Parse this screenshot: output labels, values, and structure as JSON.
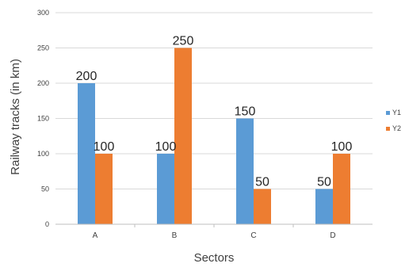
{
  "chart_data": {
    "type": "bar",
    "title": "",
    "xlabel": "Sectors",
    "ylabel": "Railway tracks (in km)",
    "categories": [
      "A",
      "B",
      "C",
      "D"
    ],
    "series": [
      {
        "name": "Y1",
        "values": [
          200,
          100,
          150,
          50
        ],
        "color": "#5B9BD5"
      },
      {
        "name": "Y2",
        "values": [
          100,
          250,
          50,
          100
        ],
        "color": "#ED7D31"
      }
    ],
    "ylim": [
      0,
      300
    ],
    "yticks": [
      0,
      50,
      100,
      150,
      200,
      250,
      300
    ],
    "grid": true,
    "legend_position": "right",
    "data_labels": true
  }
}
